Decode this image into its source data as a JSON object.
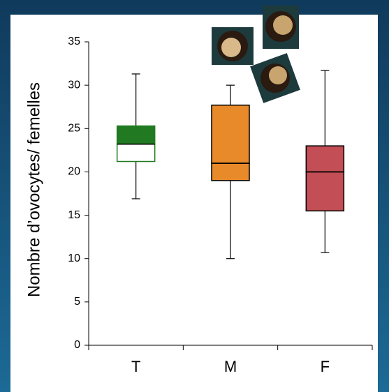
{
  "chart_data": {
    "type": "box",
    "y_label": "Nombre d’ovocytes/ femelles",
    "categories": [
      "T",
      "M",
      "F"
    ],
    "boxes": [
      {
        "min": 16.9,
        "q1": 21.2,
        "median": 23.2,
        "q3": 25.3,
        "max": 31.3,
        "stroke": "#217a21",
        "lower_fill": "#ffffff",
        "upper_fill": "#217a21"
      },
      {
        "min": 10,
        "q1": 19,
        "median": 21,
        "q3": 27.7,
        "max": 30,
        "stroke": "#000000",
        "lower_fill": "#e8892a",
        "upper_fill": "#e8892a"
      },
      {
        "min": 10.7,
        "q1": 15.5,
        "median": 20,
        "q3": 23,
        "max": 31.7,
        "stroke": "#000000",
        "lower_fill": "#c34e55",
        "upper_fill": "#c34e55"
      }
    ],
    "ylim": [
      0,
      35
    ],
    "yticks": [
      0,
      5,
      10,
      15,
      20,
      25,
      30,
      35
    ],
    "grid": false
  }
}
